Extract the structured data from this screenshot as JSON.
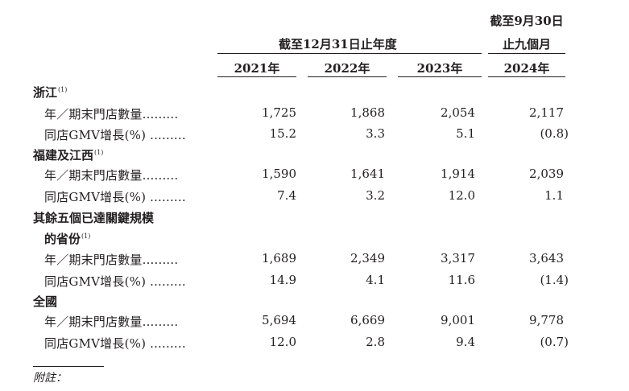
{
  "header": {
    "group_left": "截至12月31日止年度",
    "group_right_line1": "截至9月30日",
    "group_right_line2": "止九個月",
    "years": [
      "2021年",
      "2022年",
      "2023年",
      "2024年"
    ]
  },
  "sections": [
    {
      "title": "浙江",
      "title_line2": "",
      "note_mark": "(1)",
      "rows": [
        {
          "label": "年／期末門店數量.........",
          "values": [
            "1,725",
            "1,868",
            "2,054",
            "2,117"
          ]
        },
        {
          "label": "同店GMV增長(%) .........",
          "values": [
            "15.2",
            "3.3",
            "5.1",
            "(0.8)"
          ]
        }
      ]
    },
    {
      "title": "福建及江西",
      "title_line2": "",
      "note_mark": "(1)",
      "rows": [
        {
          "label": "年／期末門店數量.........",
          "values": [
            "1,590",
            "1,641",
            "1,914",
            "2,039"
          ]
        },
        {
          "label": "同店GMV增長(%) .........",
          "values": [
            "7.4",
            "3.2",
            "12.0",
            "1.1"
          ]
        }
      ]
    },
    {
      "title": "其餘五個已達關鍵規模",
      "title_line2": "的省份",
      "note_mark": "(1)",
      "rows": [
        {
          "label": "年／期末門店數量.........",
          "values": [
            "1,689",
            "2,349",
            "3,317",
            "3,643"
          ]
        },
        {
          "label": "同店GMV增長(%) .........",
          "values": [
            "14.9",
            "4.1",
            "11.6",
            "(1.4)"
          ]
        }
      ]
    },
    {
      "title": "全國",
      "title_line2": "",
      "note_mark": "",
      "rows": [
        {
          "label": "年／期末門店數量.........",
          "values": [
            "5,694",
            "6,669",
            "9,001",
            "9,778"
          ]
        },
        {
          "label": "同店GMV增長(%) .........",
          "values": [
            "12.0",
            "2.8",
            "9.4",
            "(0.7)"
          ]
        }
      ]
    }
  ],
  "footnote_label": "附註："
}
